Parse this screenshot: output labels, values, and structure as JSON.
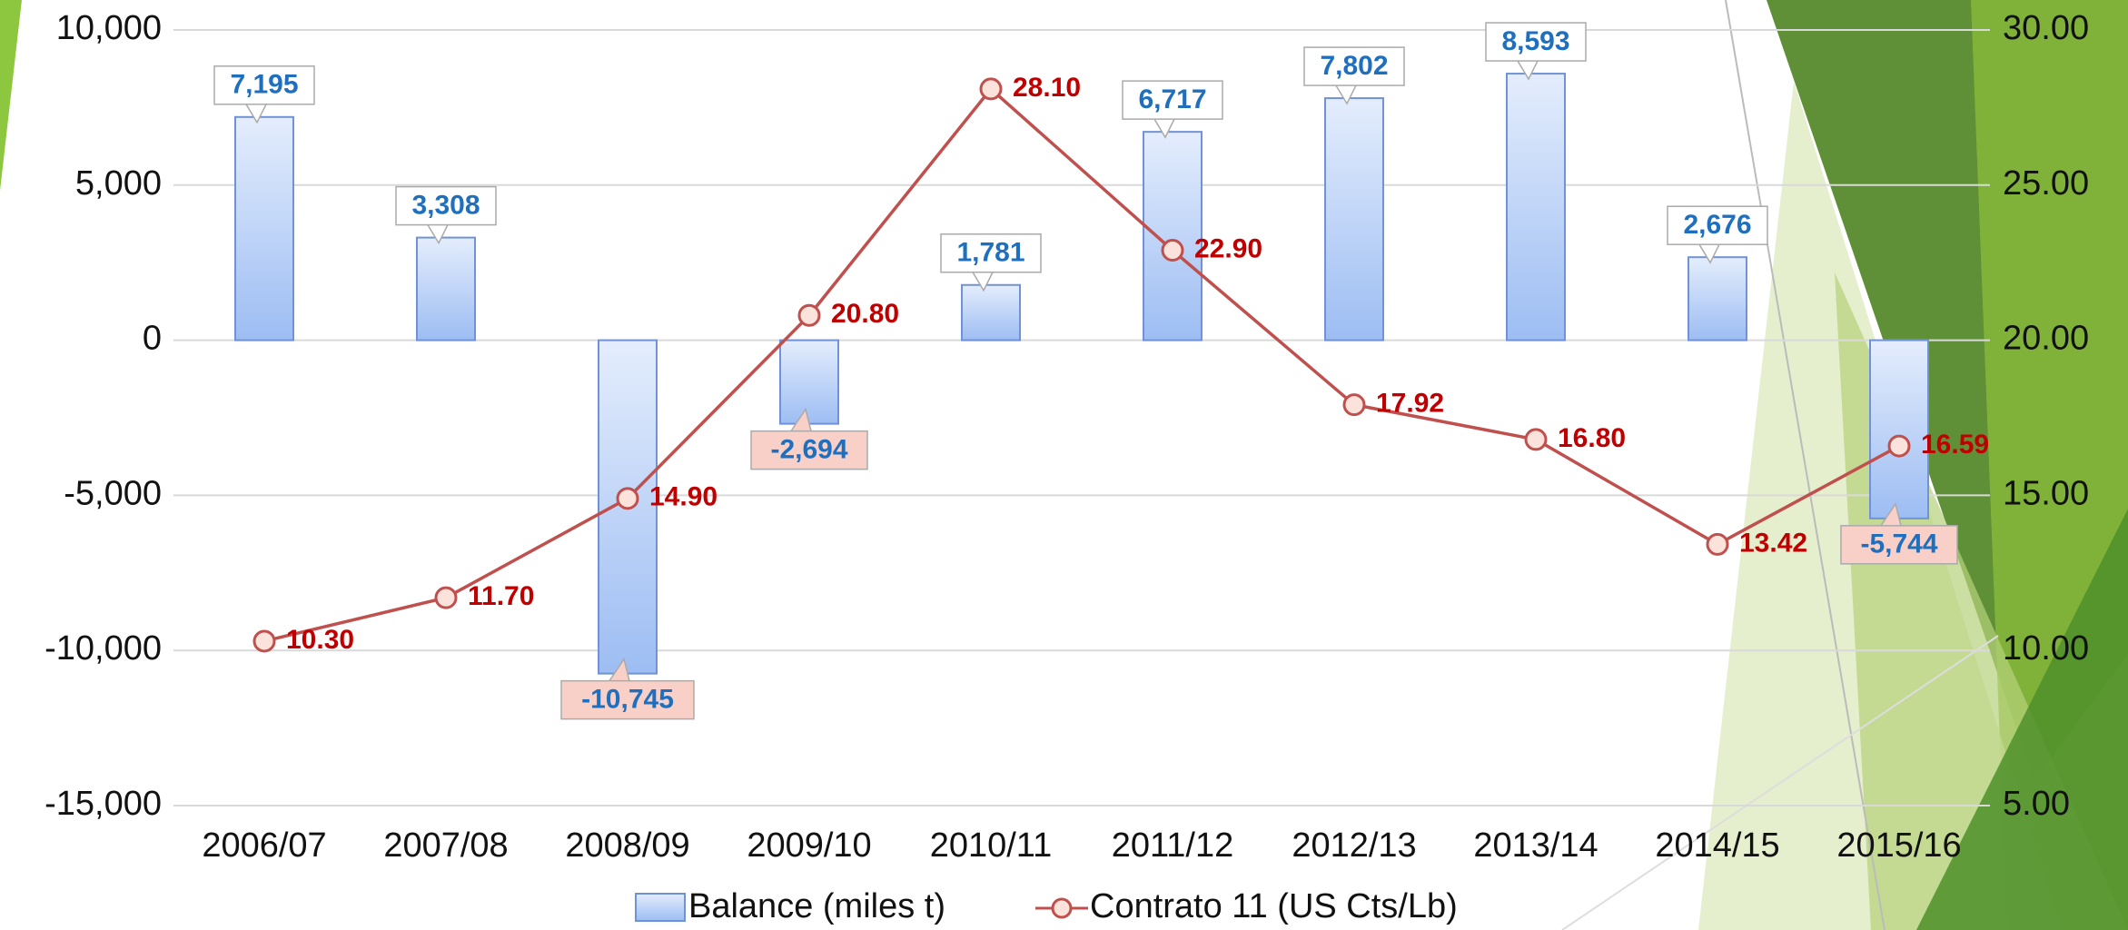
{
  "chart_data": {
    "type": "bar",
    "categories": [
      "2006/07",
      "2007/08",
      "2008/09",
      "2009/10",
      "2010/11",
      "2011/12",
      "2012/13",
      "2013/14",
      "2014/15",
      "2015/16"
    ],
    "series": [
      {
        "name": "Balance (miles t)",
        "type": "bar",
        "color": "#a9c6f5",
        "values": [
          7195,
          3308,
          -10745,
          -2694,
          1781,
          6717,
          7802,
          8593,
          2676,
          -5744
        ],
        "value_labels": [
          "7,195",
          "3,308",
          "-10,745",
          "-2,694",
          "1,781",
          "6,717",
          "7,802",
          "8,593",
          "2,676",
          "-5,744"
        ]
      },
      {
        "name": "Contrato 11 (US Cts/Lb)",
        "type": "line",
        "axis": "y2",
        "color": "#c0504d",
        "values": [
          10.3,
          11.7,
          14.9,
          20.8,
          28.1,
          22.9,
          17.92,
          16.8,
          13.42,
          16.59
        ],
        "value_labels": [
          "10.30",
          "11.70",
          "14.90",
          "20.80",
          "28.10",
          "22.90",
          "17.92",
          "16.80",
          "13.42",
          "16.59"
        ]
      }
    ],
    "ylim": [
      -15000,
      10000
    ],
    "yticks": [
      {
        "value": -15000,
        "label": "-15,000"
      },
      {
        "value": -10000,
        "label": "-10,000"
      },
      {
        "value": -5000,
        "label": "-5,000"
      },
      0,
      {
        "value": 5000,
        "label": "5,000"
      },
      {
        "value": 10000,
        "label": "10,000"
      }
    ],
    "y2lim": [
      5,
      30
    ],
    "y2ticks": [
      {
        "value": 5,
        "label": "5.00"
      },
      {
        "value": 10,
        "label": "10.00"
      },
      {
        "value": 15,
        "label": "15.00"
      },
      {
        "value": 20,
        "label": "20.00"
      },
      {
        "value": 25,
        "label": "25.00"
      },
      {
        "value": 30,
        "label": "30.00"
      }
    ],
    "grid": true
  }
}
